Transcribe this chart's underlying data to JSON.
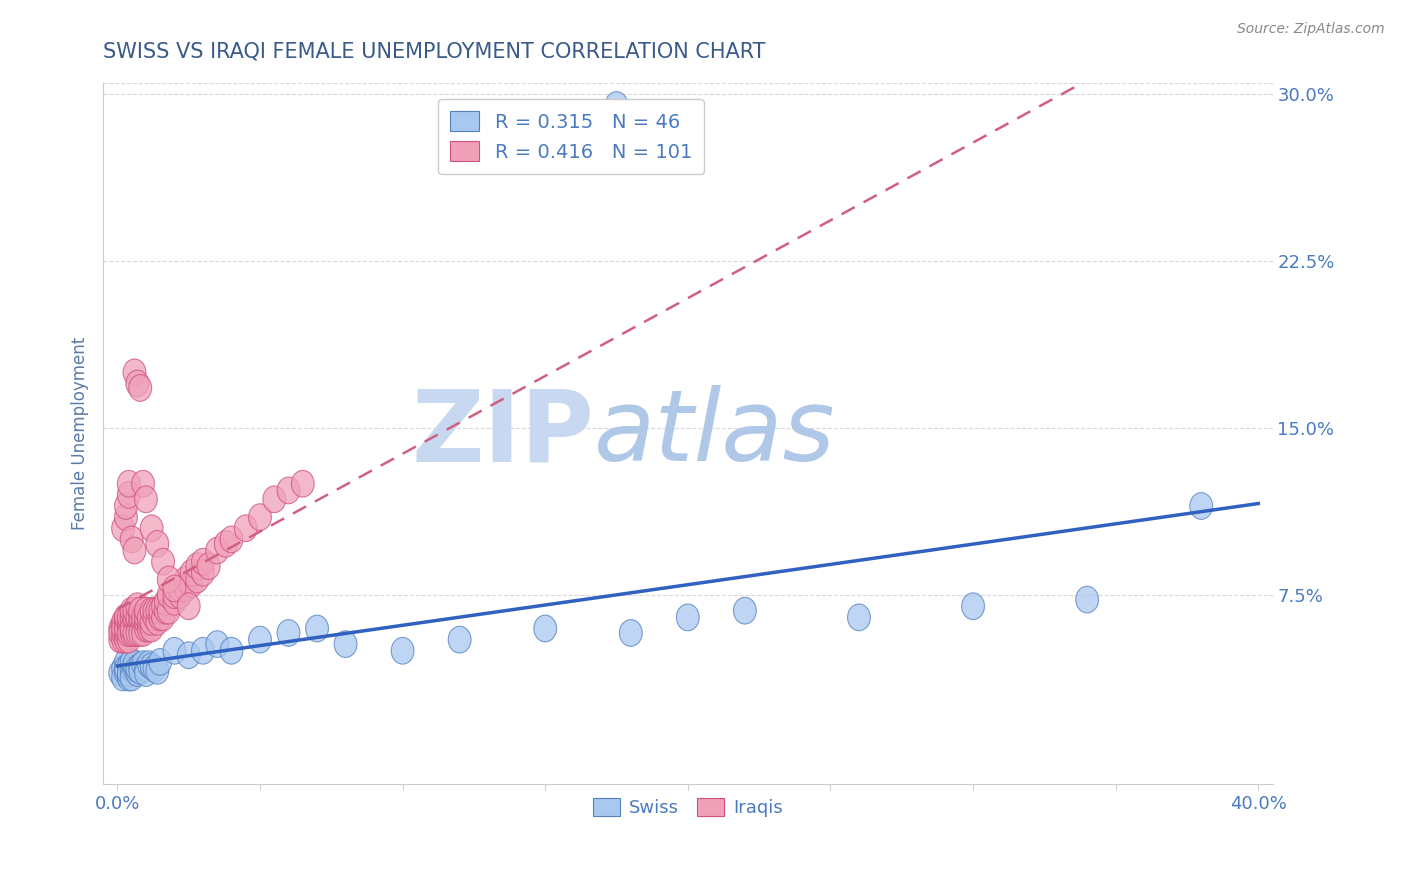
{
  "title": "SWISS VS IRAQI FEMALE UNEMPLOYMENT CORRELATION CHART",
  "source": "Source: ZipAtlas.com",
  "ylabel": "Female Unemployment",
  "xlabel": "",
  "xlim": [
    -0.005,
    0.405
  ],
  "ylim": [
    -0.01,
    0.305
  ],
  "yticks": [
    0.075,
    0.15,
    0.225,
    0.3
  ],
  "ytick_labels": [
    "7.5%",
    "15.0%",
    "22.5%",
    "30.0%"
  ],
  "xticks": [
    0.0,
    0.05,
    0.1,
    0.15,
    0.2,
    0.25,
    0.3,
    0.35,
    0.4
  ],
  "xtick_labels": [
    "0.0%",
    "",
    "",
    "",
    "",
    "",
    "",
    "",
    "40.0%"
  ],
  "swiss_R": 0.315,
  "swiss_N": 46,
  "iraqi_R": 0.416,
  "iraqi_N": 101,
  "swiss_color": "#a8c8f0",
  "iraqi_color": "#f0a0b8",
  "swiss_edge_color": "#5580c0",
  "iraqi_edge_color": "#d05080",
  "swiss_line_color": "#3060c0",
  "iraqi_line_color": "#d06080",
  "title_color": "#3a5a8a",
  "axis_label_color": "#5a7aaa",
  "tick_color": "#4a7ac0",
  "source_color": "#888888",
  "watermark_color_zip": "#c8d8f0",
  "watermark_color_atlas": "#b0c8e8",
  "grid_color": "#d8d8d8",
  "background_color": "#ffffff",
  "swiss_x": [
    0.001,
    0.002,
    0.002,
    0.003,
    0.003,
    0.003,
    0.004,
    0.004,
    0.004,
    0.005,
    0.005,
    0.005,
    0.006,
    0.006,
    0.007,
    0.007,
    0.008,
    0.008,
    0.009,
    0.01,
    0.01,
    0.011,
    0.012,
    0.013,
    0.014,
    0.015,
    0.02,
    0.025,
    0.03,
    0.035,
    0.04,
    0.05,
    0.06,
    0.07,
    0.08,
    0.1,
    0.12,
    0.15,
    0.18,
    0.2,
    0.22,
    0.26,
    0.3,
    0.34,
    0.38,
    0.175
  ],
  "swiss_y": [
    0.04,
    0.042,
    0.038,
    0.045,
    0.04,
    0.042,
    0.038,
    0.043,
    0.04,
    0.042,
    0.045,
    0.038,
    0.042,
    0.044,
    0.04,
    0.042,
    0.043,
    0.041,
    0.044,
    0.042,
    0.04,
    0.044,
    0.043,
    0.042,
    0.041,
    0.045,
    0.05,
    0.048,
    0.05,
    0.053,
    0.05,
    0.055,
    0.058,
    0.06,
    0.053,
    0.05,
    0.055,
    0.06,
    0.058,
    0.065,
    0.068,
    0.065,
    0.07,
    0.073,
    0.115,
    0.295
  ],
  "iraqi_x": [
    0.001,
    0.001,
    0.001,
    0.002,
    0.002,
    0.002,
    0.002,
    0.002,
    0.003,
    0.003,
    0.003,
    0.003,
    0.003,
    0.003,
    0.004,
    0.004,
    0.004,
    0.004,
    0.004,
    0.005,
    0.005,
    0.005,
    0.005,
    0.005,
    0.005,
    0.006,
    0.006,
    0.006,
    0.006,
    0.007,
    0.007,
    0.007,
    0.007,
    0.008,
    0.008,
    0.008,
    0.008,
    0.009,
    0.009,
    0.009,
    0.01,
    0.01,
    0.01,
    0.01,
    0.011,
    0.011,
    0.011,
    0.012,
    0.012,
    0.012,
    0.013,
    0.013,
    0.014,
    0.014,
    0.015,
    0.015,
    0.016,
    0.016,
    0.017,
    0.017,
    0.018,
    0.018,
    0.02,
    0.02,
    0.022,
    0.022,
    0.024,
    0.024,
    0.026,
    0.026,
    0.028,
    0.028,
    0.03,
    0.03,
    0.032,
    0.035,
    0.038,
    0.04,
    0.045,
    0.05,
    0.055,
    0.06,
    0.065,
    0.002,
    0.003,
    0.003,
    0.004,
    0.004,
    0.005,
    0.006,
    0.006,
    0.007,
    0.008,
    0.009,
    0.01,
    0.012,
    0.014,
    0.016,
    0.018,
    0.02,
    0.025
  ],
  "iraqi_y": [
    0.055,
    0.06,
    0.058,
    0.055,
    0.062,
    0.058,
    0.063,
    0.06,
    0.055,
    0.062,
    0.065,
    0.058,
    0.06,
    0.065,
    0.055,
    0.06,
    0.063,
    0.058,
    0.065,
    0.06,
    0.063,
    0.058,
    0.065,
    0.068,
    0.06,
    0.063,
    0.058,
    0.065,
    0.068,
    0.063,
    0.058,
    0.065,
    0.07,
    0.063,
    0.058,
    0.065,
    0.068,
    0.063,
    0.058,
    0.065,
    0.06,
    0.063,
    0.065,
    0.068,
    0.06,
    0.063,
    0.065,
    0.06,
    0.063,
    0.068,
    0.065,
    0.068,
    0.063,
    0.068,
    0.065,
    0.068,
    0.065,
    0.07,
    0.068,
    0.072,
    0.068,
    0.075,
    0.072,
    0.075,
    0.075,
    0.078,
    0.078,
    0.082,
    0.08,
    0.085,
    0.082,
    0.088,
    0.085,
    0.09,
    0.088,
    0.095,
    0.098,
    0.1,
    0.105,
    0.11,
    0.118,
    0.122,
    0.125,
    0.105,
    0.11,
    0.115,
    0.12,
    0.125,
    0.1,
    0.095,
    0.175,
    0.17,
    0.168,
    0.125,
    0.118,
    0.105,
    0.098,
    0.09,
    0.082,
    0.078,
    0.07
  ]
}
